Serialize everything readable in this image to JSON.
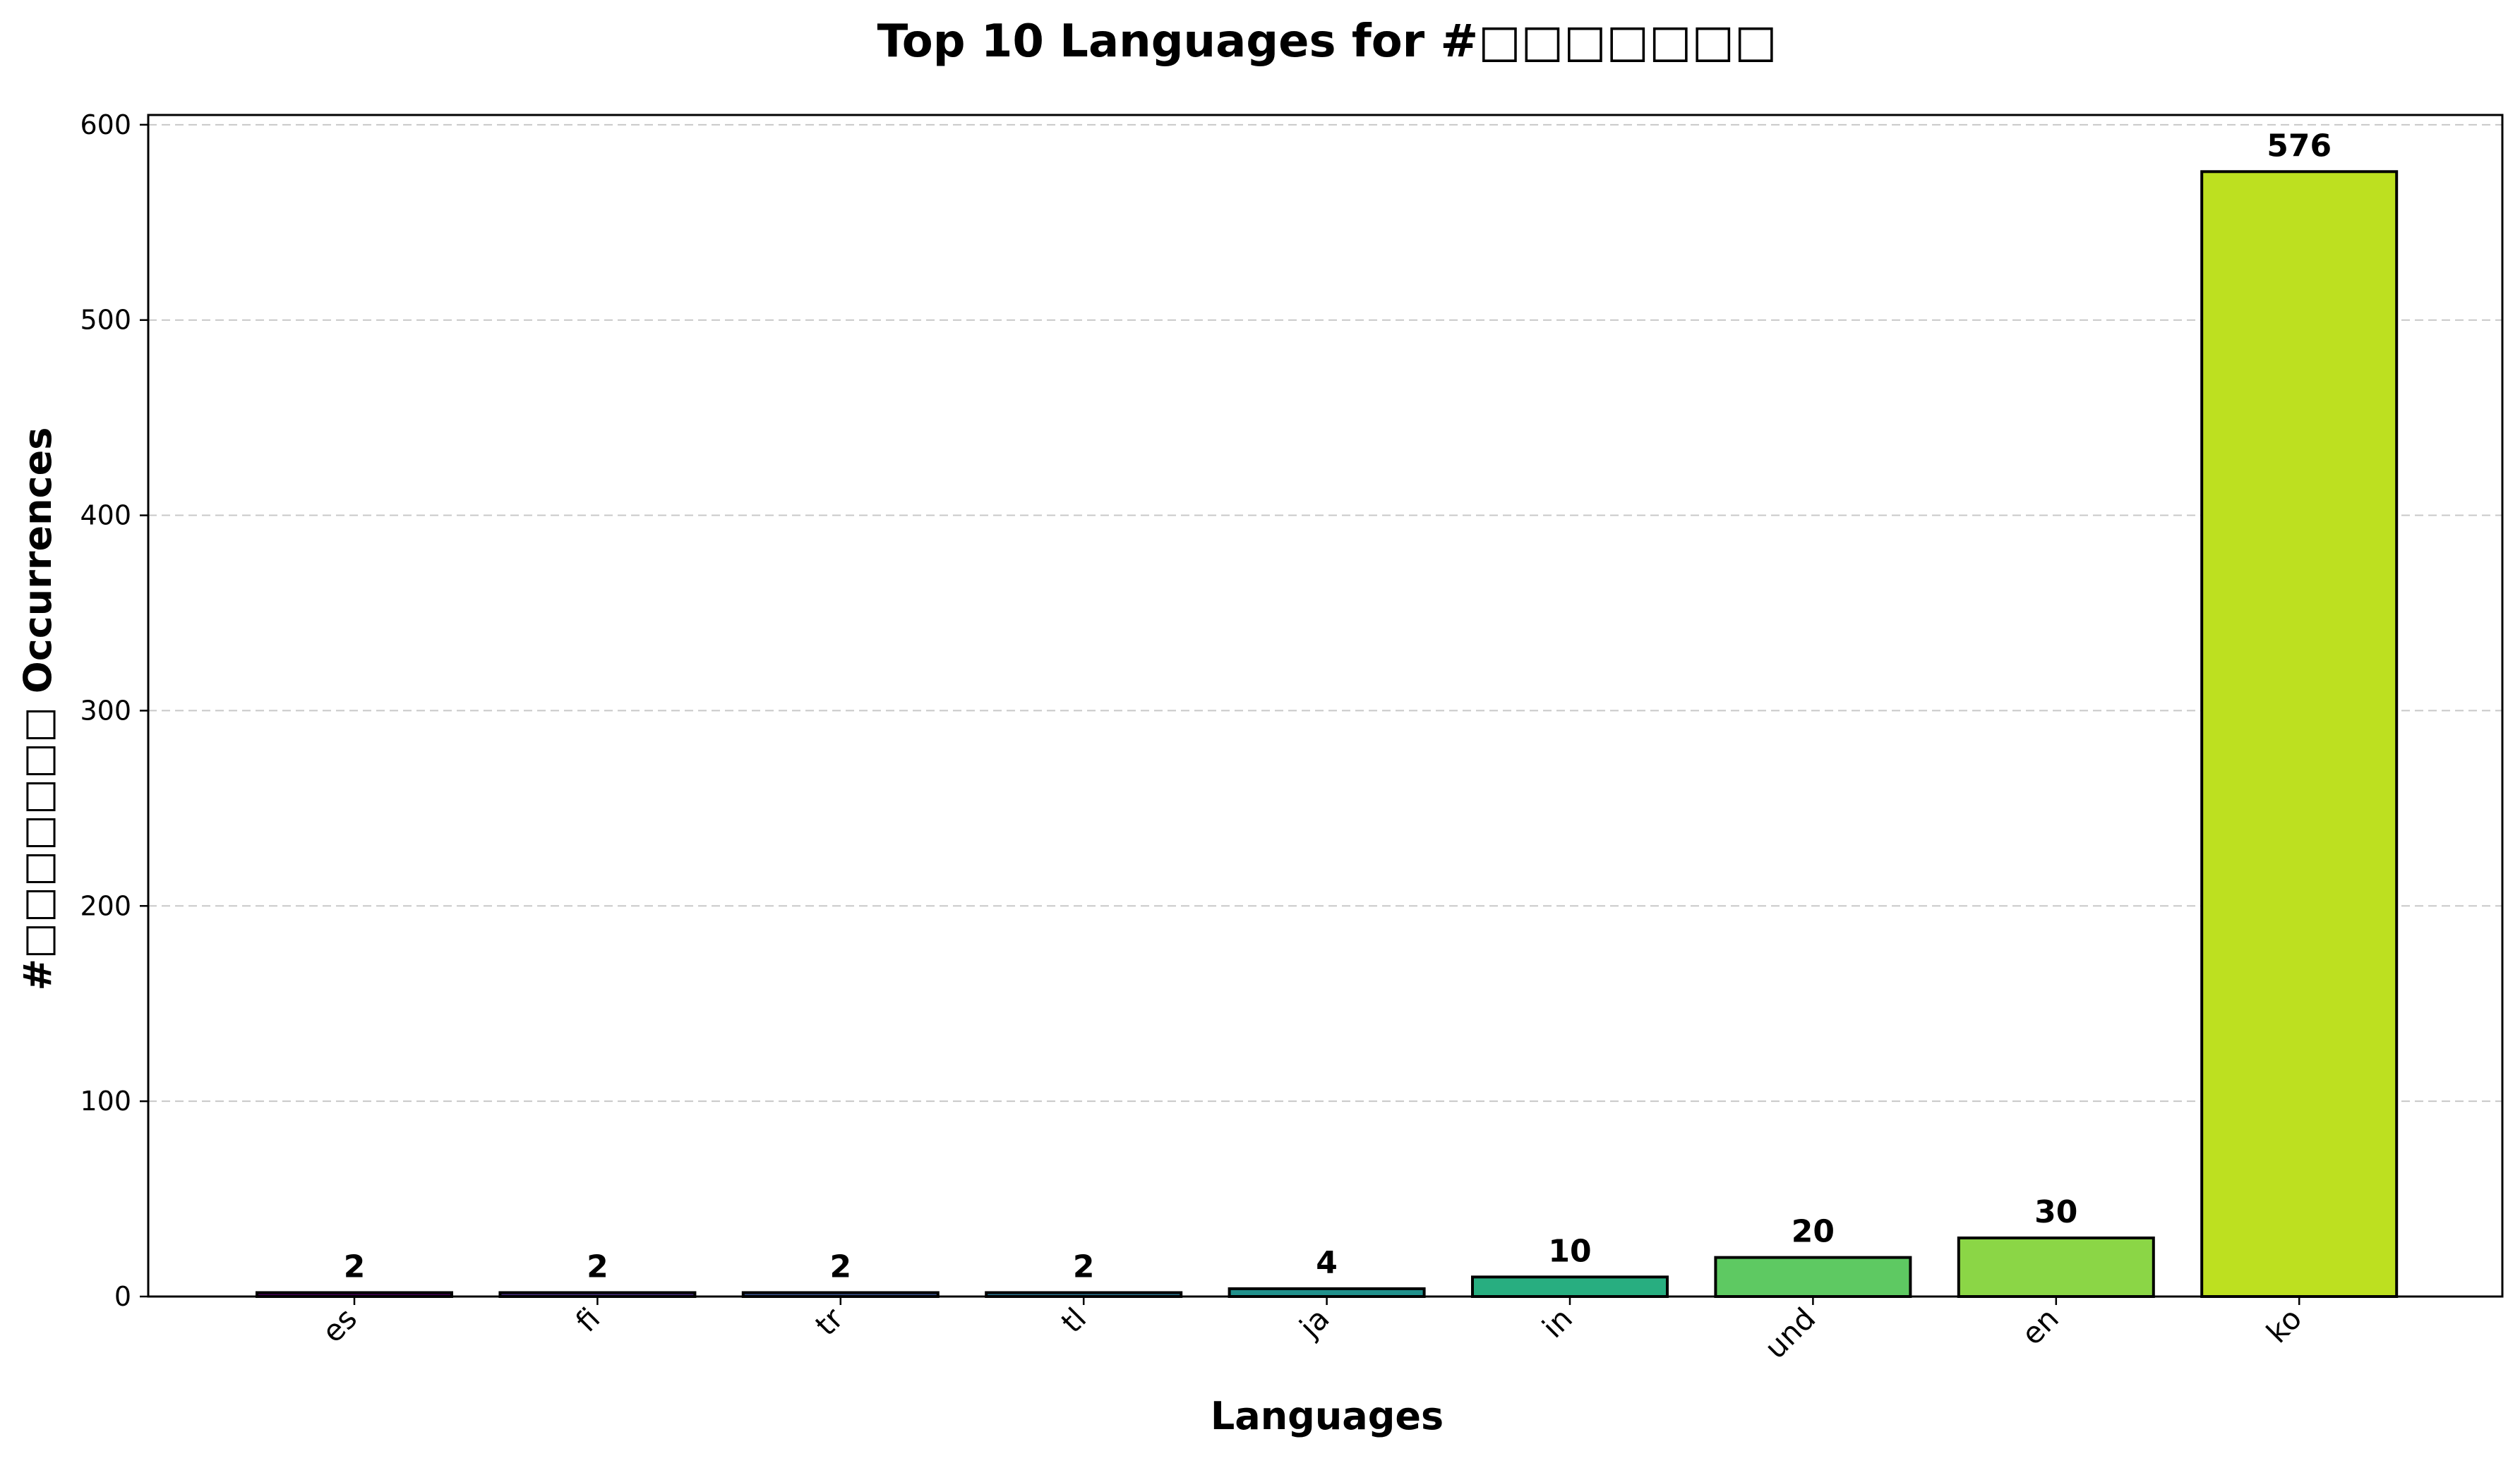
{
  "chart_data": {
    "type": "bar",
    "title": "Top 10 Languages for #□□□□□□□",
    "xlabel": "Languages",
    "ylabel": "#□□□□□□□ Occurrences",
    "categories": [
      "es",
      "fi",
      "tr",
      "tl",
      "ja",
      "in",
      "und",
      "en",
      "ko"
    ],
    "values": [
      2,
      2,
      2,
      2,
      4,
      10,
      20,
      30,
      576
    ],
    "data_labels": [
      "2",
      "2",
      "2",
      "2",
      "4",
      "10",
      "20",
      "30",
      "576"
    ],
    "colors": [
      "#440154",
      "#472d7b",
      "#3b528b",
      "#2c728e",
      "#21918c",
      "#28ae80",
      "#5ec962",
      "#8bd646",
      "#bde020"
    ],
    "ylim": [
      0,
      605
    ],
    "yticks": [
      0,
      100,
      200,
      300,
      400,
      500,
      600
    ],
    "ytick_labels": [
      "0",
      "100",
      "200",
      "300",
      "400",
      "500",
      "600"
    ],
    "grid": "y-dashed",
    "legend": "none"
  }
}
